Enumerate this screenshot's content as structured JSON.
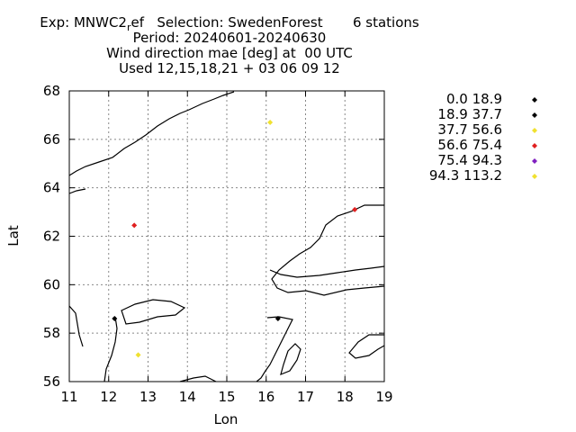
{
  "header": {
    "exp_prefix": "Exp: MNWC2",
    "exp_sub": "r",
    "exp_rest": "ef   Selection: SwedenForest       6 stations",
    "period": "Period: 20240601-20240630",
    "variable": "Wind direction mae [deg] at  00 UTC",
    "used": "Used 12,15,18,21 + 03 06 09 12"
  },
  "chart_data": {
    "type": "scatter",
    "xlabel": "Lon",
    "ylabel": "Lat",
    "xlim": [
      11,
      19
    ],
    "ylim": [
      56,
      68
    ],
    "xticks": [
      "11",
      "12",
      "13",
      "14",
      "15",
      "16",
      "17",
      "18",
      "19"
    ],
    "yticks": [
      "56",
      "58",
      "60",
      "62",
      "64",
      "66",
      "68"
    ],
    "grid": true,
    "legend_position": "right",
    "legend": [
      {
        "label": "0.0 18.9",
        "color": "#000000"
      },
      {
        "label": "18.9 37.7",
        "color": "#000000"
      },
      {
        "label": "37.7 56.6",
        "color": "#f0e130"
      },
      {
        "label": "56.6 75.4",
        "color": "#e02020"
      },
      {
        "label": "75.4 94.3",
        "color": "#8020c0"
      },
      {
        "label": "94.3 113.2",
        "color": "#f0e130"
      }
    ],
    "points": [
      {
        "lon": 16.1,
        "lat": 66.7,
        "color": "#f0e130"
      },
      {
        "lon": 12.65,
        "lat": 62.45,
        "color": "#e02020"
      },
      {
        "lon": 18.25,
        "lat": 63.1,
        "color": "#e02020"
      },
      {
        "lon": 12.15,
        "lat": 58.6,
        "color": "#000000"
      },
      {
        "lon": 16.3,
        "lat": 58.6,
        "color": "#000000"
      },
      {
        "lon": 12.75,
        "lat": 57.1,
        "color": "#f0e130"
      }
    ]
  }
}
